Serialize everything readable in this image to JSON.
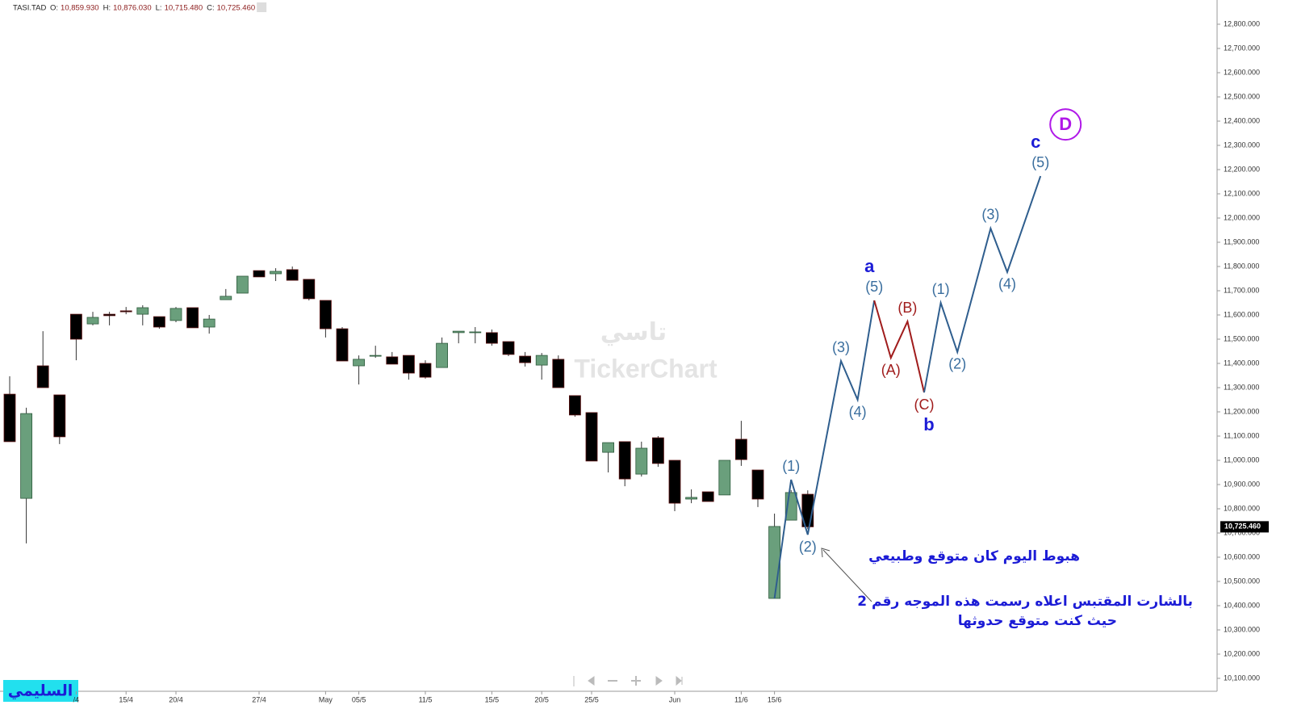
{
  "chart_data": {
    "type": "candlestick",
    "header": {
      "symbol": "TASI.TAD",
      "fields": [
        {
          "label": "O:",
          "value": "10,859.930"
        },
        {
          "label": "H:",
          "value": "10,876.030"
        },
        {
          "label": "L:",
          "value": "10,715.480"
        },
        {
          "label": "C:",
          "value": "10,725.460"
        }
      ]
    },
    "categories": [
      null,
      null,
      null,
      null,
      "/4",
      null,
      null,
      "15/4",
      null,
      null,
      "20/4",
      null,
      null,
      null,
      null,
      "27/4",
      null,
      null,
      null,
      "May",
      null,
      "05/5",
      null,
      null,
      null,
      "11/5",
      null,
      null,
      null,
      "15/5",
      null,
      null,
      "20/5",
      null,
      null,
      "25/5",
      null,
      null,
      null,
      null,
      "Jun",
      null,
      null,
      null,
      "11/6",
      null,
      "15/6",
      null,
      null
    ],
    "open": [
      11273,
      10843,
      11390,
      11270,
      11603,
      11563,
      11603,
      11617,
      11603,
      11593,
      11577,
      11630,
      11550,
      11663,
      11690,
      11783,
      11770,
      11787,
      11747,
      11660,
      11543,
      11390,
      11430,
      11427,
      11433,
      11400,
      11383,
      11527,
      11527,
      11527,
      11490,
      11430,
      11393,
      11417,
      11267,
      11197,
      11033,
      11077,
      10943,
      11093,
      11000,
      10840,
      10870,
      10857,
      11087,
      10960,
      10430,
      10753,
      10859.93
    ],
    "high": [
      11347,
      11217,
      11533,
      11270,
      11603,
      11613,
      11613,
      11633,
      11640,
      11593,
      11633,
      11630,
      11600,
      11707,
      11760,
      11783,
      11793,
      11800,
      11747,
      11660,
      11550,
      11433,
      11473,
      11447,
      11433,
      11413,
      11507,
      11533,
      11550,
      11540,
      11490,
      11447,
      11443,
      11433,
      11267,
      11197,
      11073,
      11077,
      11077,
      11100,
      11000,
      10880,
      10870,
      11000,
      11163,
      10960,
      10780,
      10877,
      10876.03
    ],
    "low": [
      11077,
      10657,
      11300,
      11067,
      11413,
      11557,
      11557,
      11603,
      11557,
      11543,
      11570,
      11547,
      11523,
      11663,
      11690,
      11757,
      11740,
      11743,
      11660,
      11507,
      11410,
      11313,
      11423,
      11397,
      11333,
      11337,
      11383,
      11483,
      11483,
      11473,
      11430,
      11387,
      11333,
      11300,
      11180,
      10997,
      10950,
      10893,
      10933,
      10973,
      10790,
      10823,
      10830,
      10857,
      10977,
      10807,
      10430,
      10753,
      10715.48
    ],
    "close": [
      11077,
      11193,
      11300,
      11097,
      11500,
      11590,
      11597,
      11613,
      11630,
      11550,
      11627,
      11547,
      11583,
      11677,
      11760,
      11757,
      11780,
      11743,
      11667,
      11543,
      11410,
      11417,
      11433,
      11397,
      11360,
      11343,
      11483,
      11533,
      11530,
      11483,
      11437,
      11403,
      11433,
      11300,
      11187,
      10997,
      11073,
      10923,
      11050,
      10987,
      10823,
      10847,
      10830,
      11000,
      11003,
      10840,
      10727,
      10867,
      10725.46
    ],
    "up_color": "#6a9f7c",
    "down_color": "#000000",
    "ylim": [
      10050,
      12900
    ],
    "yticks": [
      {
        "value": 10100,
        "label": "10,100.000"
      },
      {
        "value": 10200,
        "label": "10,200.000"
      },
      {
        "value": 10300,
        "label": "10,300.000"
      },
      {
        "value": 10400,
        "label": "10,400.000"
      },
      {
        "value": 10500,
        "label": "10,500.000"
      },
      {
        "value": 10600,
        "label": "10,600.000"
      },
      {
        "value": 10700,
        "label": "10,700.000"
      },
      {
        "value": 10800,
        "label": "10,800.000"
      },
      {
        "value": 10900,
        "label": "10,900.000"
      },
      {
        "value": 11000,
        "label": "11,000.000"
      },
      {
        "value": 11100,
        "label": "11,100.000"
      },
      {
        "value": 11200,
        "label": "11,200.000"
      },
      {
        "value": 11300,
        "label": "11,300.000"
      },
      {
        "value": 11400,
        "label": "11,400.000"
      },
      {
        "value": 11500,
        "label": "11,500.000"
      },
      {
        "value": 11600,
        "label": "11,600.000"
      },
      {
        "value": 11700,
        "label": "11,700.000"
      },
      {
        "value": 11800,
        "label": "11,800.000"
      },
      {
        "value": 11900,
        "label": "11,900.000"
      },
      {
        "value": 12000,
        "label": "12,000.000"
      },
      {
        "value": 12100,
        "label": "12,100.000"
      },
      {
        "value": 12200,
        "label": "12,200.000"
      },
      {
        "value": 12300,
        "label": "12,300.000"
      },
      {
        "value": 12400,
        "label": "12,400.000"
      },
      {
        "value": 12500,
        "label": "12,500.000"
      },
      {
        "value": 12600,
        "label": "12,600.000"
      },
      {
        "value": 12700,
        "label": "12,700.000"
      },
      {
        "value": 12800,
        "label": "12,800.000"
      }
    ],
    "last_price": {
      "value": 10725.46,
      "label": "10,725.460"
    },
    "waves": [
      {
        "color": "#2f5e8e",
        "label_color": "#3a6e9e",
        "x": [
          46,
          47,
          48,
          50,
          51,
          52
        ],
        "y": [
          10430,
          10920,
          10693,
          11410,
          11250,
          11660
        ],
        "labels": [
          null,
          "(1)",
          "(2)",
          "(3)",
          "(4)",
          "(5)"
        ],
        "degree_label": "a",
        "degree_color": "#1c1cd6"
      },
      {
        "color": "#a01c1c",
        "label_color": "#a01c1c",
        "x": [
          52,
          53,
          54,
          55
        ],
        "y": [
          11660,
          11423,
          11573,
          11280
        ],
        "labels": [
          null,
          "(A)",
          "(B)",
          "(C)"
        ],
        "degree_label": "b",
        "degree_color": "#1c1cd6"
      },
      {
        "color": "#2f5e8e",
        "label_color": "#3a6e9e",
        "x": [
          55,
          56,
          57,
          59,
          60,
          62
        ],
        "y": [
          11280,
          11650,
          11447,
          11957,
          11777,
          12173
        ],
        "labels": [
          null,
          "(1)",
          "(2)",
          "(3)",
          "(4)",
          "(5)"
        ],
        "degree_label": "c",
        "degree_color": "#1c1cd6"
      }
    ],
    "target_label": "D",
    "notes": [
      "هبوط اليوم كان متوقع وطبيعي",
      "بالشارت المقتبس اعلاه رسمت هذه الموجه رقم 2",
      "حيث كنت متوقع حدوثها"
    ],
    "watermark": {
      "arabic": "تاسي",
      "brand": "TickerChart"
    },
    "author": "السليمي"
  }
}
